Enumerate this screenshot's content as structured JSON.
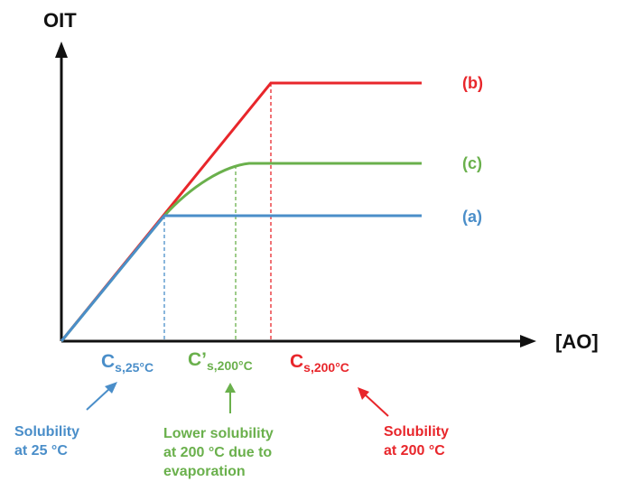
{
  "colors": {
    "blue": "#4a8ec9",
    "red": "#e8262b",
    "green": "#6ab04c",
    "axis": "#111111"
  },
  "axes": {
    "y_label": "OIT",
    "x_label": "[AO]"
  },
  "curves": {
    "a": {
      "label": "(a)",
      "color": "#4a8ec9"
    },
    "b": {
      "label": "(b)",
      "color": "#e8262b"
    },
    "c": {
      "label": "(c)",
      "color": "#6ab04c"
    }
  },
  "markers": {
    "cs25": {
      "main": "C",
      "sub": "s,25°C",
      "color": "#4a8ec9"
    },
    "cs200p": {
      "main": "C’",
      "sub": "s,200°C",
      "color": "#6ab04c"
    },
    "cs200": {
      "main": "C",
      "sub": "s,200°C",
      "color": "#e8262b"
    }
  },
  "notes": {
    "left": {
      "text": "Solubility\nat 25 °C",
      "color": "#4a8ec9"
    },
    "middle": {
      "text": "Lower solubility\nat 200 °C due to\nevaporation",
      "color": "#6ab04c"
    },
    "right": {
      "text": "Solubility\nat 200 °C",
      "color": "#e8262b"
    }
  }
}
